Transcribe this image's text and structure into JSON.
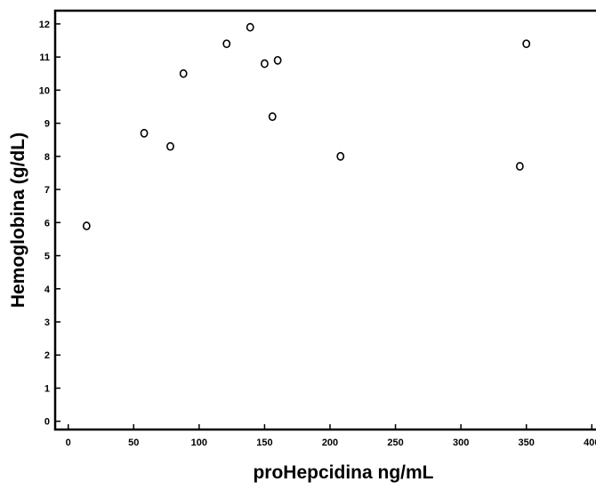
{
  "chart_data": {
    "type": "scatter",
    "title": "",
    "xlabel": "proHepcidina ng/mL",
    "ylabel": "Hemoglobina (g/dL)",
    "xlim": [
      -10,
      410
    ],
    "ylim": [
      -0.25,
      12.4
    ],
    "xticks": [
      0,
      50,
      100,
      150,
      200,
      250,
      300,
      350,
      400
    ],
    "xtick_labels": [
      "0",
      "50",
      "100",
      "150",
      "200",
      "250",
      "300",
      "350",
      "400"
    ],
    "yticks": [
      0,
      1,
      2,
      3,
      4,
      5,
      6,
      7,
      8,
      9,
      10,
      11,
      12
    ],
    "ytick_labels": [
      "0",
      "1",
      "2",
      "3",
      "4",
      "5",
      "6",
      "7",
      "8",
      "9",
      "10",
      "11",
      "12"
    ],
    "grid": false,
    "legend": "none",
    "marker": "open-circle",
    "colors": {
      "axis": "#000000",
      "marker_stroke": "#000000",
      "marker_fill": "#ffffff"
    },
    "points": [
      {
        "x": 14,
        "y": 5.9
      },
      {
        "x": 58,
        "y": 8.7
      },
      {
        "x": 78,
        "y": 8.3
      },
      {
        "x": 88,
        "y": 10.5
      },
      {
        "x": 121,
        "y": 11.4
      },
      {
        "x": 139,
        "y": 11.9
      },
      {
        "x": 150,
        "y": 10.8
      },
      {
        "x": 156,
        "y": 9.2
      },
      {
        "x": 160,
        "y": 10.9
      },
      {
        "x": 208,
        "y": 8.0
      },
      {
        "x": 345,
        "y": 7.7
      },
      {
        "x": 350,
        "y": 11.4
      }
    ]
  }
}
